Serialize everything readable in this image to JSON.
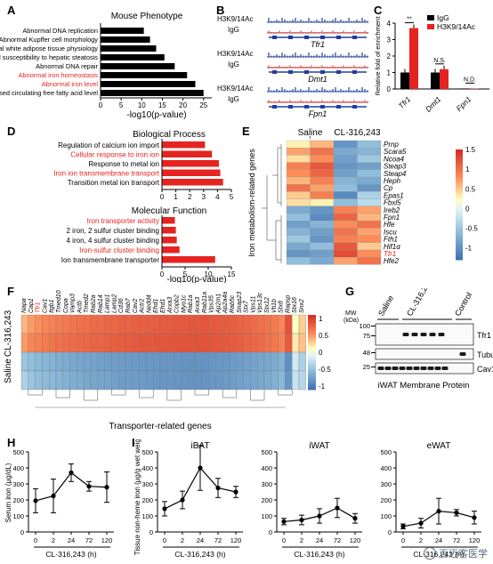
{
  "panel_labels": [
    "A",
    "B",
    "C",
    "D",
    "E",
    "F",
    "G",
    "H",
    "I"
  ],
  "colors": {
    "red": "#e52421",
    "black": "#000000",
    "grey": "#555555"
  },
  "panelA": {
    "title": "Mouse Phenotype",
    "xlabel": "-log10(p-value)",
    "ticks": [
      "0",
      "5",
      "10",
      "15",
      "20",
      "25"
    ],
    "terms": [
      {
        "label": "Abnormal DNA replication",
        "value": 10.5,
        "highlight": false
      },
      {
        "label": "Abnormal Kupffer cell morphology",
        "value": 12,
        "highlight": false
      },
      {
        "label": "Abnormal white adipose tissue physiology",
        "value": 13.5,
        "highlight": false
      },
      {
        "label": "Decreased susceptibility to hepatic steatosis",
        "value": 15.5,
        "highlight": false
      },
      {
        "label": "Abnormal DNA repair",
        "value": 18,
        "highlight": false
      },
      {
        "label": "Abnormal iron homeostasis",
        "value": 21,
        "highlight": true
      },
      {
        "label": "Abnormal iron level",
        "value": 23,
        "highlight": true
      },
      {
        "label": "Decreased circulating free fatty acid level",
        "value": 25,
        "highlight": false
      }
    ]
  },
  "panelB": {
    "tracks": [
      {
        "mark": "H3K9/14Ac",
        "igg": "IgG",
        "gene": "Tfr1"
      },
      {
        "mark": "H3K9/14Ac",
        "igg": "IgG",
        "gene": "Dmt1"
      },
      {
        "mark": "H3K9/14Ac",
        "igg": "IgG",
        "gene": "Fpn1"
      }
    ]
  },
  "panelC": {
    "ylabel": "Relative fold of enrichment",
    "yticks": [
      "0",
      "1",
      "2",
      "3",
      "4"
    ],
    "legend": [
      "IgG",
      "H3K9/14Ac"
    ],
    "genes": [
      "Tfr1",
      "Dmt1",
      "Fpn1"
    ],
    "igg": [
      1.0,
      1.0,
      0.03
    ],
    "ac": [
      3.7,
      1.2,
      0.03
    ],
    "sig": [
      "**",
      "N.S.",
      "N.D."
    ]
  },
  "panelD": {
    "title_bp": "Biological Process",
    "title_mf": "Molecular Function",
    "xlabel": "-log10(p-value)",
    "ticks_bp": [
      "0",
      "1",
      "2",
      "3",
      "4",
      "5"
    ],
    "ticks_mf": [
      "0",
      "5",
      "10",
      "15"
    ],
    "bp": [
      {
        "label": "Regulation of calcium ion import",
        "value": 3.1,
        "highlight": false
      },
      {
        "label": "Cellular response to iron ion",
        "value": 3.6,
        "highlight": true
      },
      {
        "label": "Response to metal ion",
        "value": 4.1,
        "highlight": false
      },
      {
        "label": "Iron ion transmembrane transport",
        "value": 4.2,
        "highlight": true
      },
      {
        "label": "Transition metal ion transport",
        "value": 4.4,
        "highlight": false
      }
    ],
    "mf": [
      {
        "label": "Iron transporter activity",
        "value": 2.8,
        "highlight": true
      },
      {
        "label": "2 iron, 2 sulfur cluster binding",
        "value": 3.0,
        "highlight": false
      },
      {
        "label": "4 iron, 4 sulfur cluster binding",
        "value": 3.2,
        "highlight": false
      },
      {
        "label": "Iron-sulfur cluster binding",
        "value": 3.8,
        "highlight": true
      },
      {
        "label": "Ion transmembrane transporter",
        "value": 11.5,
        "highlight": false
      }
    ]
  },
  "panelE": {
    "ylabel": "Iron metabolism-related genes",
    "groups": [
      "Saline",
      "CL-316,243"
    ],
    "genes": [
      "Prnp",
      "Scara5",
      "Ncoa4",
      "Steap3",
      "Steap4",
      "Heph",
      "Cp",
      "Epas1",
      "Fbxl5",
      "Ireb2",
      "Fpn1",
      "Hfe",
      "Iscu",
      "Fth1",
      "Hif1α",
      "Tfr1",
      "Hfe2"
    ],
    "highlight_gene": "Tfr1",
    "scale_ticks": [
      "1.5",
      "1",
      "0.5",
      "0",
      "-0.5",
      "-1"
    ],
    "matrix": [
      [
        0.3,
        0.6,
        -1.0,
        -0.6
      ],
      [
        0.7,
        1.0,
        -0.8,
        -0.7
      ],
      [
        0.4,
        0.8,
        -0.9,
        -0.5
      ],
      [
        0.9,
        1.2,
        -1.0,
        -0.9
      ],
      [
        0.8,
        1.1,
        -0.9,
        -0.6
      ],
      [
        0.6,
        0.9,
        -0.7,
        -0.8
      ],
      [
        1.0,
        0.7,
        -0.6,
        -1.0
      ],
      [
        0.5,
        0.9,
        -1.1,
        -0.4
      ],
      [
        0.4,
        0.3,
        -0.6,
        -0.3
      ],
      [
        -0.8,
        -1.0,
        0.9,
        0.7
      ],
      [
        -0.6,
        -1.1,
        1.1,
        0.6
      ],
      [
        -0.9,
        -0.7,
        0.8,
        1.0
      ],
      [
        -0.7,
        -0.9,
        1.0,
        0.7
      ],
      [
        -0.5,
        -1.0,
        0.9,
        0.8
      ],
      [
        -0.8,
        -0.6,
        1.2,
        0.5
      ],
      [
        -1.0,
        -0.9,
        1.3,
        0.8
      ],
      [
        -0.6,
        -0.8,
        0.7,
        1.0
      ]
    ]
  },
  "panelF": {
    "ylabel_top": "CL-316,243",
    "ylabel_bottom": "Saline",
    "xlabel": "Transporter-related genes",
    "highlight_gene": "Tfr1",
    "scale_ticks": [
      "1",
      "0.5",
      "0",
      "-0.5",
      "-1"
    ],
    "genes": [
      "Napa",
      "Cap1",
      "Tfr1",
      "Cav1",
      "Itgb1",
      "Tmed10",
      "Copa",
      "Vamp3",
      "Actb",
      "Tmed2",
      "Rab2a",
      "Rab14",
      "Lamp1",
      "Lamp2",
      "Cd36",
      "Rab7",
      "Cav2",
      "Actr2",
      "Nedd4",
      "Ehd1",
      "Ehd1",
      "Arxa3",
      "Copb2",
      "Myo1c",
      "Rab1a",
      "Arxa3",
      "Rab11a",
      "Vps35",
      "Ap2m1",
      "Ap2a4a",
      "Rab5c",
      "Snap23",
      "Stx7",
      "Vps11",
      "Vps13c",
      "Stx12",
      "Vti1b",
      "Stx8",
      "Rapsp",
      "Stx16",
      "Snx2"
    ],
    "rows": [
      [
        0.4,
        0.5,
        0.55,
        0.6,
        0.62,
        0.65,
        0.67,
        0.7,
        0.72,
        0.72,
        0.75,
        0.75,
        0.78,
        0.78,
        0.8,
        0.8,
        0.82,
        0.82,
        0.83,
        0.84,
        0.85,
        0.85,
        0.86,
        0.86,
        0.87,
        0.87,
        0.88,
        0.86,
        0.85,
        0.84,
        0.82,
        0.8,
        0.78,
        0.75,
        0.72,
        0.7,
        0.65,
        0.6,
        0.9,
        0.1,
        0.3
      ],
      [
        0.5,
        0.6,
        0.62,
        0.66,
        0.7,
        0.72,
        0.74,
        0.75,
        0.77,
        0.78,
        0.8,
        0.8,
        0.82,
        0.83,
        0.84,
        0.85,
        0.86,
        0.87,
        0.87,
        0.88,
        0.88,
        0.89,
        0.9,
        0.9,
        0.9,
        0.91,
        0.9,
        0.88,
        0.87,
        0.86,
        0.85,
        0.83,
        0.8,
        0.78,
        0.75,
        0.72,
        0.68,
        0.62,
        0.85,
        0.2,
        0.35
      ],
      [
        -0.5,
        -0.55,
        -0.6,
        -0.62,
        -0.65,
        -0.68,
        -0.7,
        -0.72,
        -0.74,
        -0.75,
        -0.76,
        -0.78,
        -0.8,
        -0.8,
        -0.82,
        -0.82,
        -0.83,
        -0.84,
        -0.85,
        -0.85,
        -0.86,
        -0.86,
        -0.87,
        -0.87,
        -0.88,
        -0.88,
        -0.87,
        -0.86,
        -0.85,
        -0.84,
        -0.82,
        -0.8,
        -0.78,
        -0.76,
        -0.74,
        -0.72,
        -0.7,
        -0.65,
        -0.9,
        -0.2,
        -0.4
      ],
      [
        -0.4,
        -0.5,
        -0.55,
        -0.58,
        -0.6,
        -0.62,
        -0.65,
        -0.68,
        -0.7,
        -0.72,
        -0.74,
        -0.75,
        -0.76,
        -0.78,
        -0.8,
        -0.8,
        -0.81,
        -0.82,
        -0.83,
        -0.84,
        -0.85,
        -0.85,
        -0.86,
        -0.86,
        -0.87,
        -0.87,
        -0.86,
        -0.85,
        -0.84,
        -0.82,
        -0.8,
        -0.78,
        -0.76,
        -0.74,
        -0.72,
        -0.7,
        -0.66,
        -0.6,
        -0.85,
        -0.25,
        -0.35
      ]
    ]
  },
  "panelG": {
    "mw_label": "MW (kDa)",
    "groups": [
      "Saline",
      "CL-316,243",
      "Control"
    ],
    "bands": [
      {
        "name": "Tfr1",
        "mw": [
          "100",
          "75"
        ]
      },
      {
        "name": "Tubulin",
        "mw": [
          "48"
        ]
      },
      {
        "name": "Cav1",
        "mw": [
          "25"
        ]
      }
    ],
    "caption": "iWAT Membrane Protein"
  },
  "panelH": {
    "ylabel": "Serum iron (μg/dL)",
    "xlabel": "CL-316,243 (h)",
    "yticks": [
      "0",
      "100",
      "200",
      "300",
      "400",
      "500"
    ],
    "x": [
      "0",
      "2",
      "24",
      "72",
      "120"
    ],
    "y": [
      195,
      225,
      370,
      285,
      280
    ],
    "err": [
      75,
      105,
      55,
      30,
      95
    ]
  },
  "panelI": {
    "ylabel": "Tissue non-heme iron (μg/g wet weight)",
    "xlabel": "CL-316,243 (h)",
    "yticks": [
      "0",
      "100",
      "200",
      "300",
      "400",
      "500"
    ],
    "x": [
      "0",
      "2",
      "24",
      "72",
      "120"
    ],
    "plots": [
      {
        "title": "iBAT",
        "y": [
          145,
          200,
          400,
          275,
          250
        ],
        "err": [
          45,
          55,
          140,
          60,
          35
        ]
      },
      {
        "title": "iWAT",
        "y": [
          65,
          75,
          100,
          150,
          85
        ],
        "err": [
          20,
          30,
          45,
          60,
          30
        ]
      },
      {
        "title": "eWAT",
        "y": [
          35,
          55,
          130,
          120,
          90
        ],
        "err": [
          15,
          30,
          80,
          20,
          40
        ]
      }
    ]
  },
  "watermark": "百迈客医学"
}
